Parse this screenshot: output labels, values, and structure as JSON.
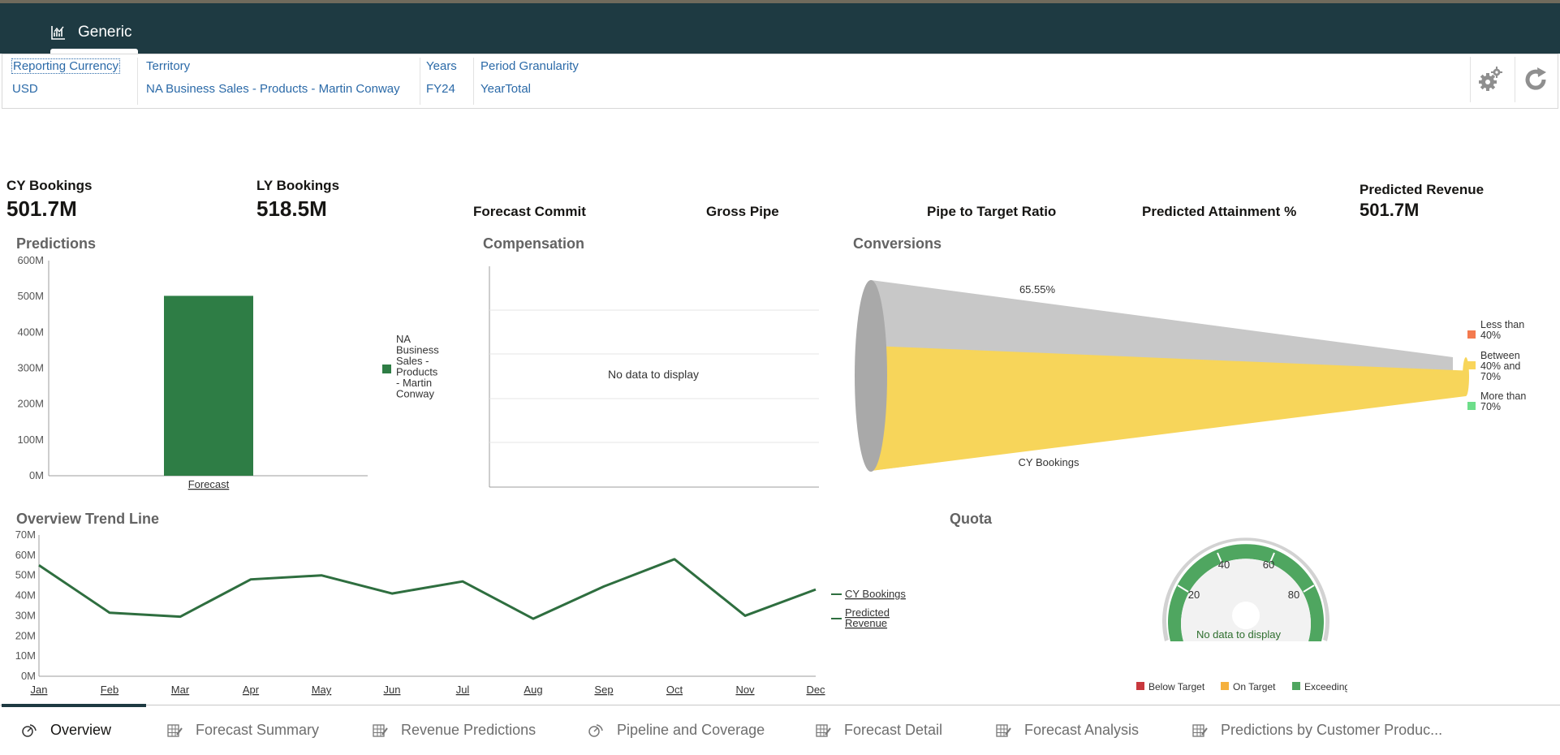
{
  "app": {
    "tab_label": "Generic",
    "icon": "chart-icon"
  },
  "pov": [
    {
      "label": "Reporting Currency",
      "value": "USD"
    },
    {
      "label": "Territory",
      "value": "NA Business Sales - Products - Martin Conway"
    },
    {
      "label": "Years",
      "value": "FY24"
    },
    {
      "label": "Period Granularity",
      "value": "YearTotal"
    }
  ],
  "toolbar": {
    "settings_icon": "gear-icon",
    "refresh_icon": "refresh-icon"
  },
  "kpis": {
    "cy_bookings": {
      "label": "CY Bookings",
      "value": "501.7M"
    },
    "ly_bookings": {
      "label": "LY Bookings",
      "value": "518.5M"
    },
    "forecast_commit": {
      "label": "Forecast Commit"
    },
    "gross_pipe": {
      "label": "Gross Pipe"
    },
    "pipe_to_target": {
      "label": "Pipe to Target Ratio"
    },
    "predicted_attainment": {
      "label": "Predicted Attainment %"
    },
    "predicted_revenue": {
      "label": "Predicted Revenue",
      "value": "501.7M"
    }
  },
  "sections": {
    "predictions": "Predictions",
    "compensation": "Compensation",
    "conversions": "Conversions",
    "trend": "Overview Trend Line",
    "quota": "Quota"
  },
  "compensation": {
    "no_data": "No data to display"
  },
  "chart_data": [
    {
      "type": "bar",
      "title": "Predictions",
      "categories": [
        "Forecast"
      ],
      "series": [
        {
          "name": "NA Business Sales - Products - Martin Conway",
          "values": [
            501.7
          ]
        }
      ],
      "y_ticks": [
        "0M",
        "100M",
        "200M",
        "300M",
        "400M",
        "500M",
        "600M"
      ],
      "ylim": [
        0,
        600
      ],
      "legend_lines": [
        "NA",
        "Business",
        "Sales -",
        "Products",
        "- Martin",
        "Conway"
      ],
      "color": "#2e7d45",
      "legend": "right"
    },
    {
      "type": "funnel",
      "title": "Conversions",
      "top_label": "65.55%",
      "bottom_label": "CY Bookings",
      "fill_fraction": 0.6555,
      "legend": [
        {
          "label_lines": [
            "Less than",
            "40%"
          ],
          "color": "#f47a4e"
        },
        {
          "label_lines": [
            "Between",
            "40% and",
            "70%"
          ],
          "color": "#f9d55b"
        },
        {
          "label_lines": [
            "More than",
            "70%"
          ],
          "color": "#6dde8a"
        }
      ]
    },
    {
      "type": "line",
      "title": "Overview Trend Line",
      "categories": [
        "Jan",
        "Feb",
        "Mar",
        "Apr",
        "May",
        "Jun",
        "Jul",
        "Aug",
        "Sep",
        "Oct",
        "Nov",
        "Dec"
      ],
      "series": [
        {
          "name": "CY Bookings",
          "values": [
            55,
            31.5,
            29.5,
            48,
            50,
            41,
            47,
            28.5,
            44.5,
            58,
            30,
            43
          ]
        },
        {
          "name": "Predicted Revenue",
          "values": [
            55,
            31.5,
            29.5,
            48,
            50,
            41,
            47,
            28.5,
            44.5,
            58,
            30,
            43
          ]
        }
      ],
      "legend_labels": [
        "CY Bookings",
        "Predicted Revenue"
      ],
      "predicted_lines": [
        "Predicted",
        "Revenue"
      ],
      "y_ticks": [
        "0M",
        "10M",
        "20M",
        "30M",
        "40M",
        "50M",
        "60M",
        "70M"
      ],
      "ylim": [
        0,
        70
      ],
      "color": "#2e6e3f",
      "legend": "right"
    },
    {
      "type": "gauge",
      "title": "Quota",
      "ticks": [
        "20",
        "40",
        "60",
        "80"
      ],
      "no_data": "No data to display",
      "legend": [
        {
          "label": "Below Target",
          "color": "#c8383d"
        },
        {
          "label": "On Target",
          "color": "#f5b13e"
        },
        {
          "label": "Exceeding",
          "color": "#4fa660"
        }
      ]
    }
  ],
  "bottom_tabs": [
    {
      "label": "Overview",
      "icon": "dashboard-icon",
      "active": true
    },
    {
      "label": "Forecast Summary",
      "icon": "grid-edit-icon",
      "active": false
    },
    {
      "label": "Revenue Predictions",
      "icon": "grid-edit-icon",
      "active": false
    },
    {
      "label": "Pipeline and Coverage",
      "icon": "dashboard-icon",
      "active": false
    },
    {
      "label": "Forecast Detail",
      "icon": "grid-edit-icon",
      "active": false
    },
    {
      "label": "Forecast Analysis",
      "icon": "grid-edit-icon",
      "active": false
    },
    {
      "label": "Predictions by Customer Produc...",
      "icon": "grid-edit-icon",
      "active": false
    }
  ]
}
